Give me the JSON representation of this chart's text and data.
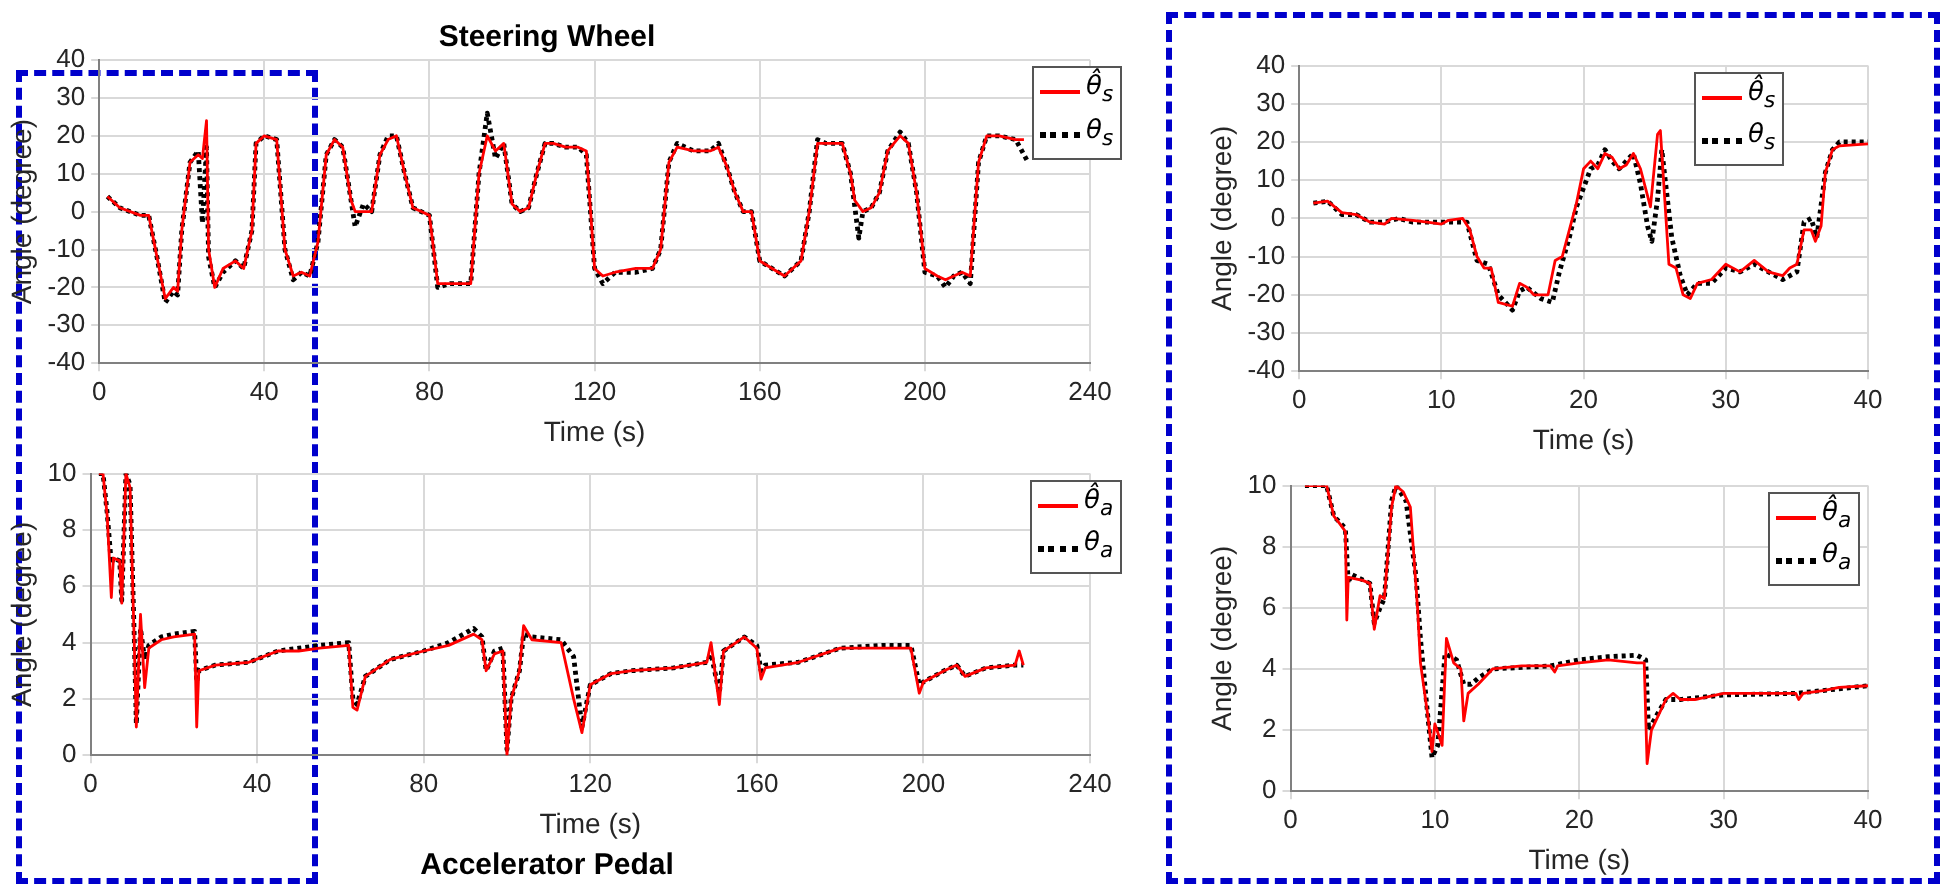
{
  "chart_data": [
    {
      "type": "line",
      "title": "Steering Wheel",
      "xlabel": "Time (s)",
      "ylabel": "Angle (degree)",
      "xlim": [
        0,
        240
      ],
      "xticks": [
        0,
        40,
        80,
        120,
        160,
        200,
        240
      ],
      "ylim": [
        -40,
        40
      ],
      "yticks": [
        -40,
        -30,
        -20,
        -10,
        0,
        10,
        20,
        30,
        40
      ],
      "grid": true,
      "legend": "top right",
      "marker": "none",
      "series": [
        {
          "name": "θ̂$_{s}$",
          "color": "#ff0000",
          "line_style": "solid",
          "x": [
            2,
            5,
            10,
            12,
            14,
            16,
            18,
            19,
            20,
            22,
            24,
            25,
            26,
            26.5,
            28,
            30,
            33,
            35,
            37,
            38,
            40,
            43,
            45,
            47,
            49,
            51,
            53,
            55,
            57,
            59,
            61,
            62,
            64,
            66,
            68,
            70,
            72,
            74,
            76,
            78,
            80,
            82,
            85,
            88,
            90,
            92,
            94,
            96,
            98,
            100,
            102,
            104,
            106,
            108,
            110,
            113,
            116,
            118,
            120,
            122,
            125,
            130,
            134,
            136,
            138,
            140,
            144,
            148,
            150,
            152,
            154,
            156,
            158,
            160,
            163,
            166,
            168,
            170,
            172,
            174,
            176,
            180,
            182,
            183,
            185,
            187,
            189,
            191,
            194,
            196,
            198,
            200,
            203,
            205,
            207,
            209,
            211,
            213,
            215,
            218,
            222,
            224
          ],
          "values": [
            4,
            1,
            -1,
            -1,
            -12,
            -23,
            -20,
            -21,
            -5,
            13,
            15,
            14,
            24,
            -10,
            -20,
            -15,
            -13,
            -15,
            -5,
            18,
            20,
            19,
            -10,
            -17,
            -16,
            -17,
            -8,
            15,
            19,
            17,
            3,
            0,
            0,
            0,
            15,
            19,
            20,
            10,
            1,
            0,
            -1,
            -19,
            -19,
            -19,
            -19,
            10,
            20,
            16,
            18,
            2,
            0,
            1,
            10,
            18,
            18,
            17,
            17,
            16,
            -15,
            -17,
            -16,
            -15,
            -15,
            -10,
            13,
            17,
            16,
            16,
            17,
            12,
            5,
            0,
            0,
            -13,
            -15,
            -17,
            -15,
            -13,
            0,
            18,
            18,
            18,
            10,
            3,
            0,
            1,
            5,
            16,
            20,
            18,
            5,
            -15,
            -17,
            -18,
            -17,
            -16,
            -17,
            13,
            20,
            20,
            19,
            19
          ]
        },
        {
          "name": "θ$_{s}$",
          "color": "#000000",
          "line_style": "dotted",
          "x": [
            2,
            5,
            10,
            12,
            14,
            16,
            18,
            19,
            20,
            22,
            24,
            25,
            26,
            26.5,
            28,
            30,
            33,
            35,
            37,
            38,
            40,
            43,
            45,
            47,
            49,
            51,
            53,
            55,
            57,
            59,
            61,
            62,
            64,
            66,
            68,
            70,
            72,
            74,
            76,
            78,
            80,
            82,
            85,
            88,
            90,
            92,
            94,
            96,
            98,
            100,
            102,
            104,
            106,
            108,
            110,
            113,
            116,
            118,
            120,
            122,
            125,
            130,
            134,
            136,
            138,
            140,
            144,
            148,
            150,
            152,
            154,
            156,
            158,
            160,
            163,
            166,
            168,
            170,
            172,
            174,
            176,
            180,
            182,
            184,
            185,
            187,
            189,
            191,
            194,
            196,
            198,
            200,
            203,
            205,
            207,
            209,
            211,
            213,
            215,
            218,
            222,
            225
          ],
          "values": [
            4,
            1,
            -1,
            -1,
            -12,
            -24,
            -21,
            -22,
            -5,
            13,
            16,
            -3,
            17,
            -12,
            -20,
            -16,
            -13,
            -15,
            -5,
            18,
            20,
            19,
            -10,
            -18,
            -16,
            -17,
            -8,
            15,
            19,
            17,
            3,
            -4,
            2,
            0,
            15,
            20,
            20,
            10,
            1,
            0,
            -1,
            -20,
            -19,
            -19,
            -19,
            10,
            26,
            14,
            18,
            2,
            0,
            1,
            10,
            18,
            18,
            17,
            17,
            15,
            -15,
            -19,
            -16,
            -16,
            -15,
            -10,
            13,
            18,
            16,
            16,
            18,
            12,
            5,
            0,
            0,
            -13,
            -15,
            -17,
            -15,
            -13,
            0,
            19,
            18,
            18,
            10,
            -7,
            0,
            1,
            5,
            16,
            21,
            18,
            5,
            -16,
            -17,
            -20,
            -17,
            -16,
            -19,
            13,
            20,
            20,
            19,
            13
          ]
        }
      ]
    },
    {
      "type": "line",
      "title": "Accelerator Pedal",
      "xlabel": "Time (s)",
      "ylabel": "Angle (degree)",
      "xlim": [
        0,
        240
      ],
      "xticks": [
        0,
        40,
        80,
        120,
        160,
        200,
        240
      ],
      "ylim": [
        0,
        10
      ],
      "yticks": [
        0,
        2,
        4,
        6,
        8,
        10
      ],
      "grid": true,
      "legend": "top right",
      "marker": "none",
      "series": [
        {
          "name": "θ̂$_{a}$",
          "color": "#ff0000",
          "line_style": "solid",
          "x": [
            2,
            3,
            4,
            5,
            5.5,
            7,
            7.5,
            8.5,
            9.5,
            10.5,
            11,
            12,
            13,
            14,
            17,
            20,
            25,
            25.5,
            26,
            30,
            38,
            45,
            50,
            55,
            62,
            63,
            64,
            66,
            72,
            80,
            86,
            92,
            94,
            95,
            97,
            99,
            100,
            101,
            103,
            104,
            106,
            113,
            116,
            118,
            120,
            125,
            130,
            140,
            148,
            149,
            151,
            152,
            155,
            157,
            160,
            161,
            162,
            170,
            180,
            190,
            197,
            199,
            200,
            205,
            208,
            210,
            215,
            222,
            223,
            224
          ],
          "values": [
            10,
            10,
            8.5,
            5.6,
            7,
            6.9,
            5.4,
            10,
            9.5,
            4,
            1,
            5,
            2.4,
            3.8,
            4.1,
            4.2,
            4.3,
            1,
            3,
            3.2,
            3.3,
            3.7,
            3.7,
            3.8,
            3.9,
            1.7,
            1.6,
            2.8,
            3.4,
            3.7,
            3.9,
            4.3,
            4.1,
            3,
            3.6,
            3.7,
            0,
            2,
            3,
            4.6,
            4.1,
            4,
            2,
            0.8,
            2.5,
            2.9,
            3,
            3.1,
            3.3,
            4,
            1.8,
            3.7,
            4,
            4.2,
            3.8,
            2.7,
            3.1,
            3.3,
            3.8,
            3.8,
            3.8,
            2.2,
            2.6,
            3,
            3.2,
            2.8,
            3.1,
            3.2,
            3.7,
            3.2
          ]
        },
        {
          "name": "θ$_{a}$",
          "color": "#000000",
          "line_style": "dotted",
          "x": [
            2,
            3,
            4,
            5,
            5.5,
            7,
            7.5,
            8.5,
            9.5,
            10.5,
            11,
            12,
            13,
            14,
            17,
            20,
            25,
            25.5,
            26,
            30,
            38,
            45,
            50,
            55,
            62,
            63,
            64,
            66,
            72,
            80,
            86,
            92,
            94,
            95,
            97,
            99,
            100,
            101,
            103,
            104,
            106,
            113,
            116,
            118,
            120,
            125,
            130,
            140,
            148,
            149,
            151,
            152,
            155,
            157,
            160,
            161,
            162,
            170,
            180,
            190,
            197,
            199,
            200,
            205,
            208,
            210,
            215,
            222,
            224
          ],
          "values": [
            10,
            10,
            8.6,
            6.8,
            7,
            6.9,
            5.5,
            10,
            9.6,
            4.2,
            1.1,
            4.5,
            3.4,
            3.9,
            4.2,
            4.3,
            4.4,
            2.6,
            3,
            3.2,
            3.3,
            3.7,
            3.8,
            3.9,
            4,
            2,
            1.8,
            2.8,
            3.4,
            3.7,
            4,
            4.5,
            4.2,
            3,
            3.7,
            3.8,
            0.2,
            2,
            3,
            4.3,
            4.2,
            4.1,
            3.5,
            1,
            2.5,
            2.9,
            3,
            3.1,
            3.3,
            3.6,
            2.2,
            3.7,
            4,
            4.2,
            3.9,
            3,
            3.2,
            3.3,
            3.8,
            3.9,
            3.9,
            2.5,
            2.6,
            3,
            3.2,
            2.8,
            3.1,
            3.2,
            3.2
          ]
        }
      ]
    },
    {
      "type": "line",
      "xlabel": "Time (s)",
      "ylabel": "Angle (degree)",
      "xlim": [
        0,
        40
      ],
      "xticks": [
        0,
        10,
        20,
        30,
        40
      ],
      "ylim": [
        -40,
        40
      ],
      "yticks": [
        -40,
        -30,
        -20,
        -10,
        0,
        10,
        20,
        30,
        40
      ],
      "grid": true,
      "legend": "top right",
      "marker": "none",
      "series": [
        {
          "name": "θ̂$_{s}$",
          "color": "#ff0000",
          "line_style": "solid",
          "x": [
            1,
            2,
            3,
            4,
            5,
            6,
            6.5,
            8,
            9,
            10,
            10.5,
            11.5,
            12,
            12.5,
            13,
            13.5,
            14,
            15,
            15.5,
            16,
            16.5,
            17.5,
            18,
            18.5,
            19,
            19.5,
            20,
            20.5,
            21,
            21.5,
            22,
            22.5,
            23,
            23.5,
            24,
            24.7,
            25.2,
            25.4,
            26,
            26.5,
            27,
            27.5,
            28,
            29,
            30,
            31,
            32,
            33,
            34,
            34.5,
            35,
            35.5,
            36,
            36.3,
            36.7,
            37,
            37.5,
            38,
            40
          ],
          "values": [
            4,
            4.5,
            1.5,
            1,
            -1,
            -1.5,
            0,
            -0.5,
            -1,
            -1.5,
            -0.5,
            0,
            -3,
            -10,
            -13,
            -13,
            -22,
            -23,
            -17,
            -18,
            -20,
            -20,
            -11,
            -10,
            -3,
            4,
            13,
            15,
            13,
            17,
            16,
            13,
            14,
            17,
            13,
            3,
            22,
            23,
            -12,
            -13,
            -20,
            -21,
            -17,
            -16,
            -12,
            -14,
            -11,
            -14,
            -15,
            -13,
            -12,
            -3,
            -3,
            -6,
            -2,
            12,
            18,
            19,
            19.5
          ]
        },
        {
          "name": "θ$_{s}$",
          "color": "#000000",
          "line_style": "dotted",
          "x": [
            1,
            2,
            3,
            4,
            5,
            6,
            7,
            8,
            9,
            10,
            11,
            11.8,
            12.5,
            13.3,
            14,
            15,
            15.5,
            16,
            17,
            17.8,
            18.3,
            19,
            19.5,
            20,
            20.5,
            21,
            21.5,
            22,
            22.5,
            23,
            23.5,
            24,
            24.5,
            24.8,
            25.2,
            25.5,
            26.2,
            26.8,
            27.3,
            28,
            29,
            30,
            31,
            32,
            33,
            34,
            35,
            35.5,
            36,
            36.4,
            37,
            37.5,
            38,
            40
          ],
          "values": [
            4,
            4.5,
            1,
            1,
            -1,
            -1,
            0,
            -1,
            -1,
            -1,
            -1,
            -1,
            -11,
            -12,
            -20,
            -24,
            -19,
            -18,
            -21,
            -22,
            -14,
            -5,
            3,
            8,
            13,
            14,
            18,
            15,
            13,
            15,
            17,
            9,
            -2,
            -6,
            5,
            18,
            -5,
            -15,
            -20,
            -17,
            -17,
            -13,
            -14,
            -12,
            -14,
            -16,
            -14,
            -1,
            0,
            -5,
            12,
            18,
            20,
            20
          ]
        }
      ]
    },
    {
      "type": "line",
      "xlabel": "Time (s)",
      "ylabel": "Angle (degree)",
      "xlim": [
        0,
        40
      ],
      "xticks": [
        0,
        10,
        20,
        30,
        40
      ],
      "ylim": [
        0,
        10
      ],
      "yticks": [
        0,
        2,
        4,
        6,
        8,
        10
      ],
      "grid": true,
      "legend": "top right",
      "marker": "none",
      "series": [
        {
          "name": "θ̂$_{a}$",
          "color": "#ff0000",
          "line_style": "solid",
          "x": [
            1,
            2.5,
            3,
            3.5,
            3.8,
            3.9,
            4,
            5,
            5.5,
            5.8,
            6.2,
            6.5,
            7,
            7.3,
            7.8,
            8.3,
            8.8,
            9,
            9.5,
            9.8,
            10,
            10.5,
            10.8,
            11.3,
            11.8,
            12,
            12.3,
            13,
            14,
            16,
            18,
            18.3,
            18.5,
            20,
            22,
            24,
            24.5,
            24.7,
            25,
            26,
            26.5,
            27,
            28,
            30,
            33,
            35,
            35.2,
            35.5,
            37,
            38,
            40
          ],
          "values": [
            10,
            10,
            9,
            8.7,
            8.5,
            5.6,
            7,
            6.9,
            6.8,
            5.3,
            6.4,
            6.3,
            9.3,
            10,
            9.8,
            9.3,
            6,
            4.2,
            2.5,
            1.3,
            2.2,
            1.5,
            5,
            4.2,
            4,
            2.3,
            3.2,
            3.5,
            4,
            4.1,
            4.1,
            3.9,
            4.1,
            4.2,
            4.3,
            4.2,
            4.2,
            0.9,
            2,
            3,
            3.2,
            3,
            3,
            3.2,
            3.2,
            3.2,
            3,
            3.2,
            3.3,
            3.4,
            3.45
          ]
        },
        {
          "name": "θ$_{a}$",
          "color": "#000000",
          "line_style": "dotted",
          "x": [
            1,
            2.5,
            3,
            3.8,
            4,
            4.2,
            5.5,
            5.8,
            6.2,
            6.5,
            7,
            7.3,
            8,
            8.7,
            9,
            9.5,
            9.8,
            10.2,
            10.7,
            11.5,
            12,
            12.5,
            13,
            14,
            18,
            20,
            22,
            24,
            24.6,
            24.8,
            25.5,
            26,
            27,
            30,
            35,
            38,
            40
          ],
          "values": [
            10,
            10,
            9,
            8.6,
            6.8,
            7.1,
            6.8,
            5.5,
            6,
            6.3,
            9.5,
            10,
            9.5,
            7,
            5,
            2.5,
            1.1,
            1.5,
            4.5,
            4.3,
            3.5,
            3.5,
            3.7,
            4,
            4.1,
            4.3,
            4.4,
            4.45,
            4.3,
            2,
            2.6,
            3,
            3,
            3.15,
            3.2,
            3.35,
            3.45
          ]
        }
      ]
    }
  ]
}
